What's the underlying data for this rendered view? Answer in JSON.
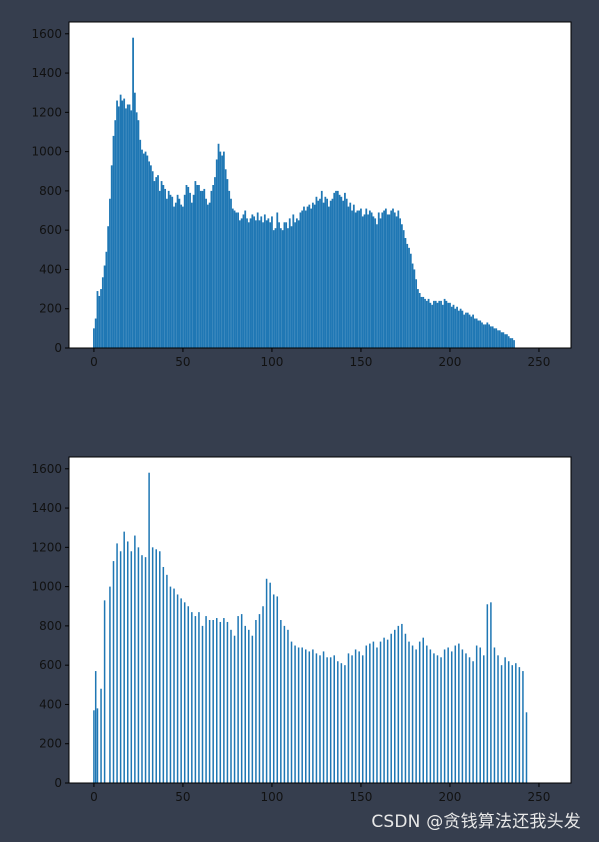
{
  "colors": {
    "background": "#363e4e",
    "plot_background": "#ffffff",
    "bar": "#1f77b4",
    "axis": "#000000"
  },
  "watermark": "CSDN @贪钱算法还我头发",
  "chart_data": [
    {
      "type": "bar",
      "title": "",
      "xlabel": "",
      "ylabel": "",
      "xlim": [
        -14,
        268
      ],
      "ylim": [
        0,
        1660
      ],
      "xticks": [
        0,
        50,
        100,
        150,
        200,
        250
      ],
      "yticks": [
        0,
        200,
        400,
        600,
        800,
        1000,
        1200,
        1400,
        1600
      ],
      "grid": false,
      "bar_width": 1,
      "x_start": 0,
      "values": [
        100,
        150,
        290,
        265,
        300,
        360,
        420,
        490,
        620,
        760,
        930,
        1080,
        1160,
        1260,
        1230,
        1290,
        1260,
        1270,
        1220,
        1240,
        1240,
        1210,
        1580,
        1300,
        1200,
        1160,
        1060,
        1010,
        990,
        1000,
        980,
        950,
        930,
        900,
        850,
        870,
        880,
        800,
        850,
        830,
        810,
        760,
        800,
        780,
        770,
        720,
        740,
        780,
        760,
        730,
        720,
        780,
        830,
        820,
        790,
        740,
        780,
        850,
        830,
        830,
        800,
        800,
        810,
        760,
        730,
        740,
        800,
        830,
        870,
        960,
        1040,
        1000,
        980,
        1000,
        910,
        860,
        800,
        760,
        710,
        700,
        690,
        690,
        650,
        660,
        680,
        700,
        660,
        640,
        660,
        680,
        670,
        650,
        690,
        650,
        670,
        640,
        680,
        650,
        660,
        640,
        670,
        600,
        610,
        690,
        640,
        610,
        600,
        640,
        640,
        610,
        660,
        620,
        680,
        640,
        660,
        650,
        690,
        700,
        720,
        700,
        720,
        730,
        710,
        740,
        730,
        770,
        750,
        760,
        800,
        740,
        770,
        760,
        720,
        750,
        760,
        790,
        800,
        800,
        780,
        770,
        750,
        790,
        760,
        720,
        740,
        700,
        730,
        690,
        700,
        700,
        710,
        670,
        680,
        710,
        680,
        700,
        690,
        670,
        660,
        630,
        690,
        660,
        690,
        700,
        710,
        680,
        680,
        700,
        710,
        690,
        670,
        700,
        660,
        630,
        600,
        560,
        530,
        510,
        480,
        430,
        400,
        350,
        300,
        280,
        260,
        260,
        250,
        240,
        250,
        230,
        220,
        240,
        240,
        230,
        240,
        240,
        220,
        250,
        240,
        230,
        230,
        210,
        220,
        200,
        210,
        190,
        200,
        190,
        170,
        180,
        180,
        170,
        160,
        170,
        150,
        150,
        140,
        140,
        130,
        120,
        120,
        130,
        120,
        110,
        110,
        100,
        100,
        90,
        90,
        80,
        80,
        70,
        70,
        60,
        50,
        50,
        40
      ]
    },
    {
      "type": "bar",
      "title": "",
      "xlabel": "",
      "ylabel": "",
      "xlim": [
        -14,
        268
      ],
      "ylim": [
        0,
        1660
      ],
      "xticks": [
        0,
        50,
        100,
        150,
        200,
        250
      ],
      "yticks": [
        0,
        200,
        400,
        600,
        800,
        1000,
        1200,
        1400,
        1600
      ],
      "grid": false,
      "bar_width": 0.85,
      "x_start": 0,
      "values": [
        370,
        570,
        380,
        0,
        480,
        0,
        930,
        0,
        0,
        1000,
        0,
        1130,
        0,
        1220,
        0,
        1180,
        0,
        1280,
        0,
        1230,
        0,
        1180,
        0,
        1260,
        0,
        1200,
        0,
        1160,
        0,
        1150,
        0,
        1580,
        0,
        1200,
        0,
        1190,
        0,
        1180,
        0,
        1100,
        0,
        1060,
        0,
        1000,
        0,
        990,
        0,
        960,
        0,
        940,
        0,
        920,
        0,
        900,
        0,
        870,
        0,
        850,
        0,
        870,
        0,
        800,
        0,
        850,
        0,
        830,
        0,
        830,
        0,
        840,
        0,
        820,
        0,
        840,
        0,
        820,
        0,
        780,
        0,
        750,
        0,
        850,
        0,
        860,
        0,
        800,
        0,
        780,
        0,
        750,
        0,
        830,
        0,
        860,
        0,
        900,
        0,
        1040,
        0,
        1020,
        0,
        960,
        0,
        950,
        0,
        830,
        0,
        800,
        0,
        780,
        0,
        720,
        0,
        700,
        0,
        690,
        0,
        690,
        0,
        680,
        0,
        670,
        0,
        680,
        0,
        660,
        0,
        650,
        0,
        670,
        0,
        640,
        0,
        640,
        0,
        650,
        0,
        620,
        0,
        610,
        0,
        600,
        0,
        660,
        0,
        650,
        0,
        680,
        0,
        670,
        0,
        650,
        0,
        700,
        0,
        710,
        0,
        720,
        0,
        690,
        0,
        720,
        0,
        740,
        0,
        730,
        0,
        760,
        0,
        780,
        0,
        800,
        0,
        810,
        0,
        760,
        0,
        720,
        0,
        700,
        0,
        680,
        0,
        720,
        0,
        740,
        0,
        700,
        0,
        680,
        0,
        660,
        0,
        650,
        0,
        640,
        0,
        680,
        0,
        690,
        0,
        670,
        0,
        700,
        0,
        710,
        0,
        680,
        0,
        660,
        0,
        640,
        0,
        620,
        0,
        700,
        0,
        690,
        0,
        650,
        0,
        910,
        0,
        920,
        0,
        690,
        0,
        650,
        0,
        600,
        0,
        640,
        0,
        620,
        0,
        600,
        0,
        610,
        0,
        590,
        0,
        570,
        0,
        360
      ]
    }
  ]
}
